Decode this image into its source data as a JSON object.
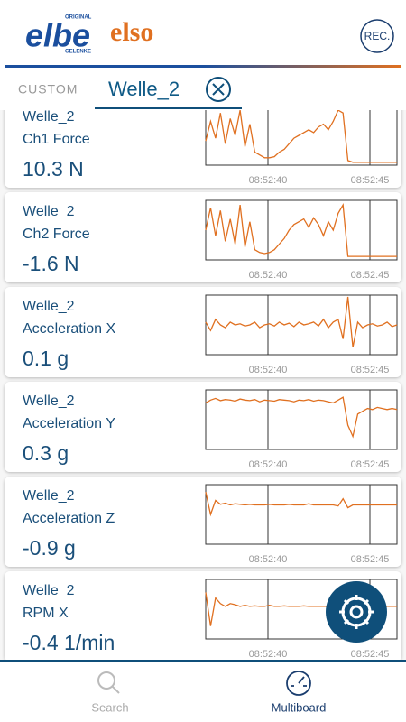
{
  "header": {
    "logo_primary": "elbe",
    "logo_primary_top": "ORIGINAL",
    "logo_primary_bottom": "GELENKE",
    "logo_secondary": "elso",
    "rec_button": "REC."
  },
  "tabs": {
    "custom": "CUSTOM",
    "active": "Welle_2"
  },
  "cards": [
    {
      "device": "Welle_2",
      "channel": "Ch1 Force",
      "value": "10.3 N",
      "time_labels": [
        "08:52:40",
        "08:52:45"
      ],
      "trace": [
        40,
        75,
        45,
        90,
        35,
        80,
        50,
        95,
        30,
        70,
        20,
        15,
        10,
        10,
        12,
        20,
        25,
        35,
        45,
        50,
        55,
        60,
        55,
        65,
        70,
        60,
        75,
        95,
        90,
        5,
        2,
        2,
        2,
        2,
        2,
        2,
        2,
        2,
        2,
        2
      ]
    },
    {
      "device": "Welle_2",
      "channel": "Ch2 Force",
      "value": "-1.6 N",
      "time_labels": [
        "08:52:40",
        "08:52:45"
      ],
      "trace": [
        50,
        90,
        40,
        85,
        30,
        70,
        25,
        95,
        20,
        65,
        15,
        10,
        8,
        10,
        15,
        25,
        35,
        50,
        60,
        65,
        70,
        55,
        72,
        60,
        40,
        65,
        50,
        80,
        95,
        3,
        3,
        3,
        3,
        3,
        3,
        3,
        3,
        3,
        3,
        3
      ]
    },
    {
      "device": "Welle_2",
      "channel": "Acceleration X",
      "value": "0.1 g",
      "time_labels": [
        "08:52:40",
        "08:52:45"
      ],
      "trace": [
        55,
        40,
        60,
        50,
        45,
        55,
        50,
        52,
        48,
        50,
        55,
        45,
        50,
        52,
        48,
        55,
        50,
        53,
        47,
        55,
        50,
        52,
        55,
        48,
        60,
        45,
        55,
        60,
        25,
        100,
        10,
        55,
        45,
        50,
        52,
        48,
        50,
        55,
        47,
        50
      ]
    },
    {
      "device": "Welle_2",
      "channel": "Acceleration Y",
      "value": "0.3 g",
      "time_labels": [
        "08:52:40",
        "08:52:45"
      ],
      "trace": [
        80,
        85,
        88,
        84,
        86,
        85,
        83,
        87,
        85,
        84,
        86,
        82,
        85,
        84,
        83,
        86,
        85,
        84,
        82,
        85,
        84,
        86,
        83,
        85,
        84,
        82,
        80,
        85,
        90,
        40,
        20,
        60,
        65,
        70,
        68,
        72,
        70,
        68,
        70,
        68
      ]
    },
    {
      "device": "Welle_2",
      "channel": "Acceleration Z",
      "value": "-0.9 g",
      "time_labels": [
        "08:52:40",
        "08:52:45"
      ],
      "trace": [
        90,
        50,
        75,
        68,
        70,
        67,
        69,
        68,
        67,
        68,
        67,
        67,
        67,
        68,
        67,
        67,
        67,
        68,
        67,
        67,
        67,
        69,
        67,
        67,
        67,
        67,
        67,
        65,
        78,
        62,
        67,
        67,
        67,
        67,
        67,
        67,
        67,
        67,
        67,
        67
      ]
    },
    {
      "device": "Welle_2",
      "channel": "RPM X",
      "value": "-0.4 1/min",
      "time_labels": [
        "08:52:40",
        "08:52:45"
      ],
      "trace": [
        80,
        20,
        70,
        60,
        55,
        60,
        58,
        55,
        57,
        55,
        56,
        55,
        55,
        57,
        55,
        55,
        56,
        55,
        55,
        55,
        56,
        55,
        55,
        55,
        55,
        55,
        56,
        55,
        55,
        55,
        55,
        55,
        55,
        55,
        55,
        55,
        55,
        55,
        55,
        55
      ]
    }
  ],
  "nav": {
    "items": [
      {
        "label": "Search"
      },
      {
        "label": "Multiboard"
      }
    ]
  }
}
